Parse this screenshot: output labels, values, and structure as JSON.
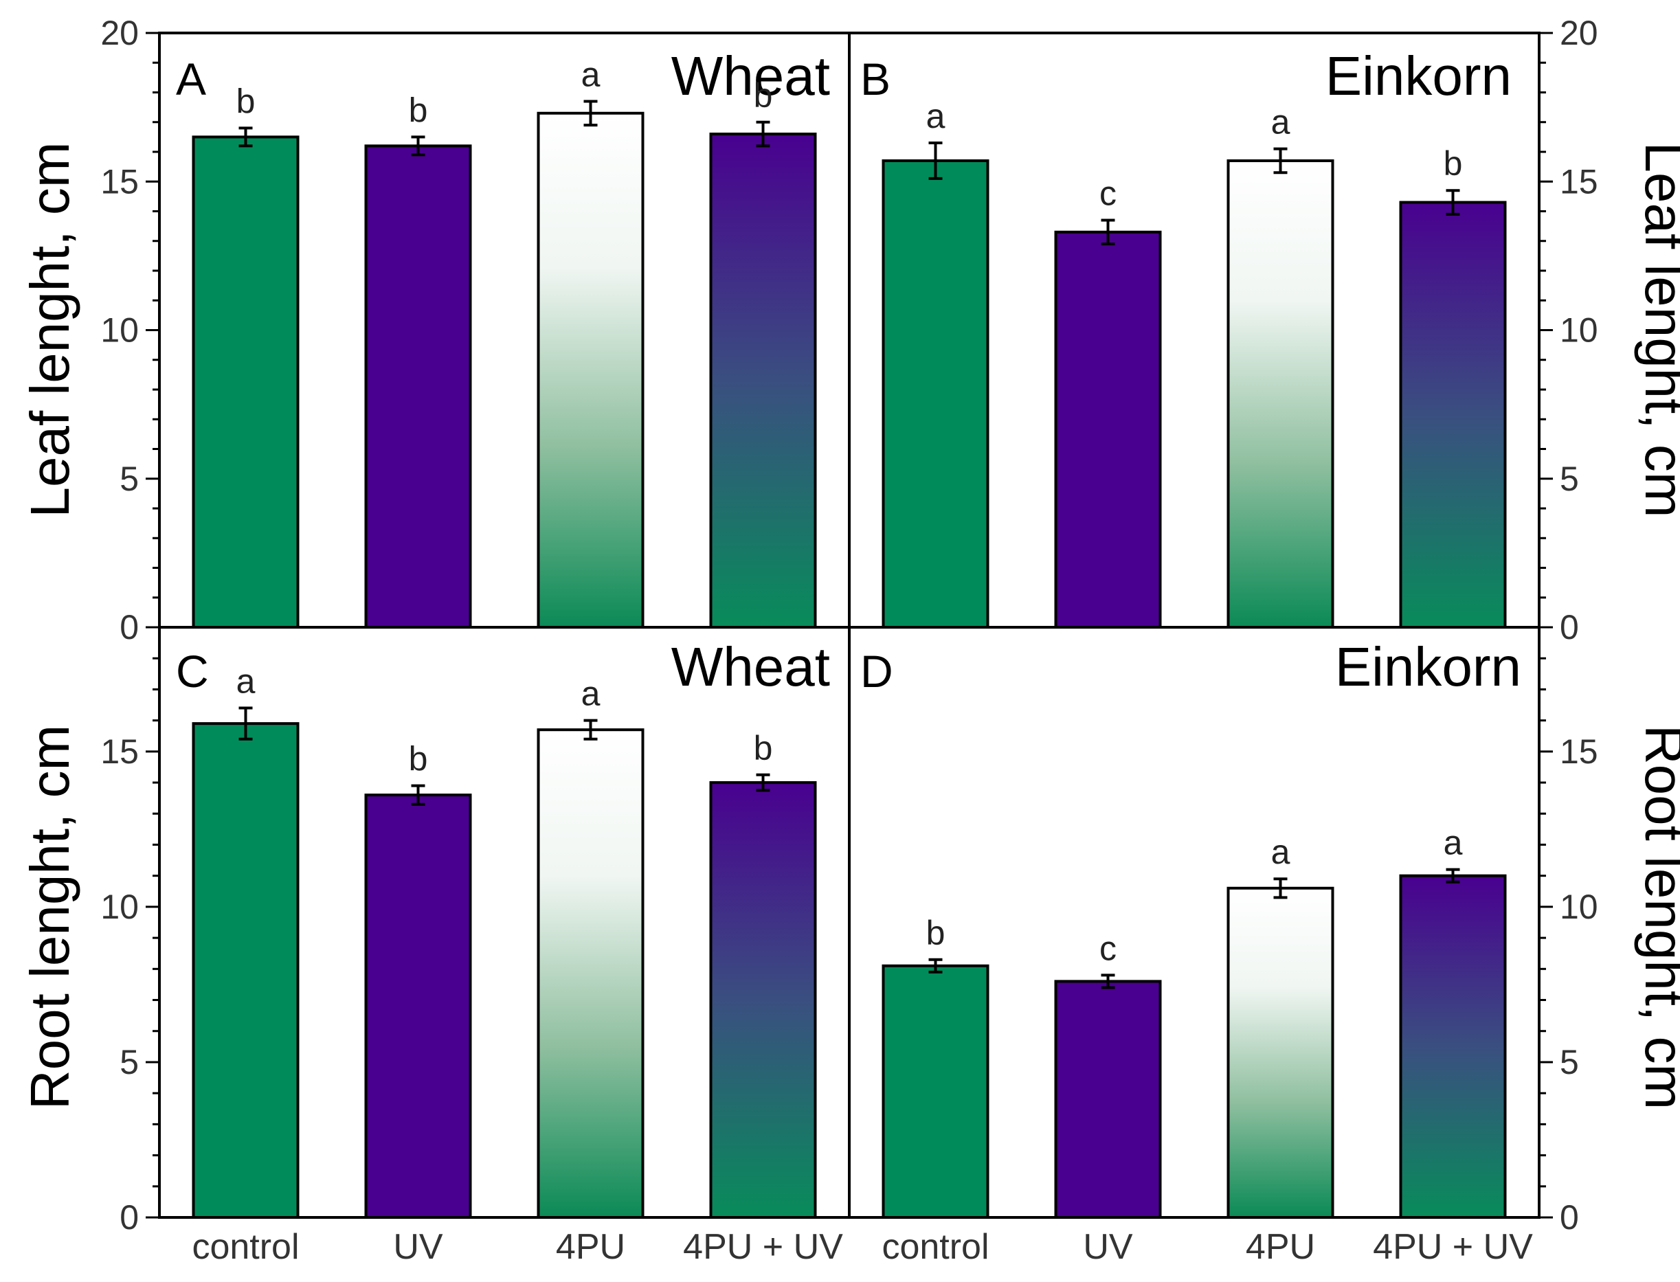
{
  "colors": {
    "green": "#008c5a",
    "purple": "#490090",
    "white": "#ffffff"
  },
  "axes": {
    "top_left_label": "Leaf lenght, cm",
    "top_right_label": "Leaf lenght, cm",
    "bottom_left_label": "Root lenght, cm",
    "bottom_right_label": "Root lenght, cm"
  },
  "chart_data": [
    {
      "panel": "A",
      "type": "bar",
      "title": "Wheat",
      "ylabel": "Leaf lenght, cm",
      "ylim": [
        0,
        20
      ],
      "yticks": [
        0,
        5,
        10,
        15,
        20
      ],
      "categories": [
        "control",
        "UV",
        "4PU",
        "4PU + UV"
      ],
      "values": [
        16.5,
        16.2,
        17.3,
        16.6
      ],
      "errors": [
        0.3,
        0.3,
        0.4,
        0.4
      ],
      "significance": [
        "b",
        "b",
        "a",
        "b"
      ],
      "fills": [
        "green",
        "purple",
        "gradient-white-green",
        "gradient-purple-green"
      ]
    },
    {
      "panel": "B",
      "type": "bar",
      "title": "Einkorn",
      "ylabel": "Leaf lenght, cm",
      "ylim": [
        0,
        20
      ],
      "yticks": [
        0,
        5,
        10,
        15,
        20
      ],
      "categories": [
        "control",
        "UV",
        "4PU",
        "4PU + UV"
      ],
      "values": [
        15.7,
        13.3,
        15.7,
        14.3
      ],
      "errors": [
        0.6,
        0.4,
        0.4,
        0.4
      ],
      "significance": [
        "a",
        "c",
        "a",
        "b"
      ],
      "fills": [
        "green",
        "purple",
        "gradient-white-green",
        "gradient-purple-green"
      ]
    },
    {
      "panel": "C",
      "type": "bar",
      "title": "Wheat",
      "ylabel": "Root lenght, cm",
      "ylim": [
        0,
        19
      ],
      "yticks": [
        0,
        5,
        10,
        15
      ],
      "categories": [
        "control",
        "UV",
        "4PU",
        "4PU + UV"
      ],
      "values": [
        15.9,
        13.6,
        15.7,
        14.0
      ],
      "errors": [
        0.5,
        0.3,
        0.3,
        0.25
      ],
      "significance": [
        "a",
        "b",
        "a",
        "b"
      ],
      "fills": [
        "green",
        "purple",
        "gradient-white-green",
        "gradient-purple-green"
      ]
    },
    {
      "panel": "D",
      "type": "bar",
      "title": "Einkorn",
      "ylabel": "Root lenght, cm",
      "ylim": [
        0,
        19
      ],
      "yticks": [
        0,
        5,
        10,
        15
      ],
      "categories": [
        "control",
        "UV",
        "4PU",
        "4PU + UV"
      ],
      "values": [
        8.1,
        7.6,
        10.6,
        11.0
      ],
      "errors": [
        0.2,
        0.2,
        0.3,
        0.2
      ],
      "significance": [
        "b",
        "c",
        "a",
        "a"
      ],
      "fills": [
        "green",
        "purple",
        "gradient-white-green",
        "gradient-purple-green"
      ]
    }
  ]
}
